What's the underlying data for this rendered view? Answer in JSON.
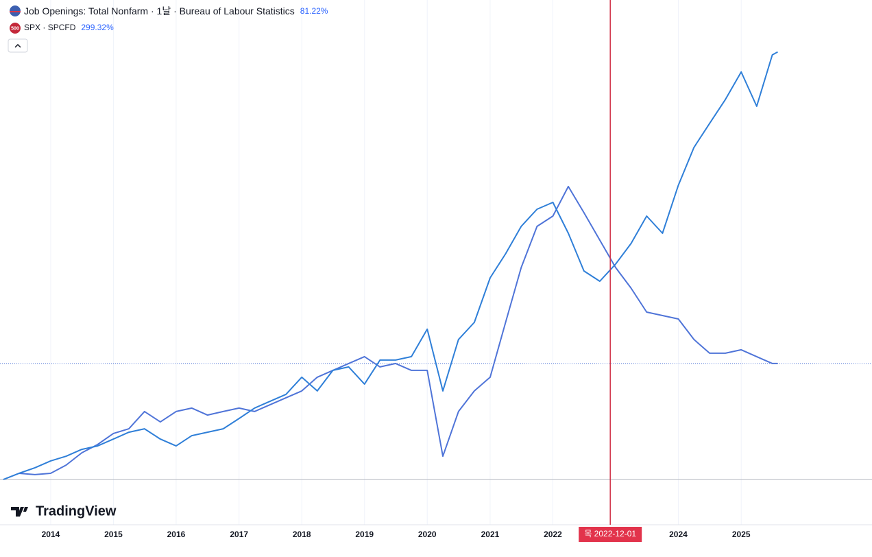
{
  "chart_data": {
    "type": "line",
    "x": [
      "2013-04-01",
      "2013-07-01",
      "2013-10-01",
      "2014-01-01",
      "2014-04-01",
      "2014-07-01",
      "2014-10-01",
      "2015-01-01",
      "2015-04-01",
      "2015-07-01",
      "2015-10-01",
      "2016-01-01",
      "2016-04-01",
      "2016-07-01",
      "2016-10-01",
      "2017-01-01",
      "2017-04-01",
      "2017-07-01",
      "2017-10-01",
      "2018-01-01",
      "2018-04-01",
      "2018-07-01",
      "2018-10-01",
      "2019-01-01",
      "2019-04-01",
      "2019-07-01",
      "2019-10-01",
      "2020-01-01",
      "2020-04-01",
      "2020-07-01",
      "2020-10-01",
      "2021-01-01",
      "2021-04-01",
      "2021-07-01",
      "2021-10-01",
      "2022-01-01",
      "2022-04-01",
      "2022-07-01",
      "2022-10-01",
      "2023-01-01",
      "2023-04-01",
      "2023-07-01",
      "2023-10-01",
      "2024-01-01",
      "2024-04-01",
      "2024-07-01",
      "2024-10-01",
      "2025-01-01",
      "2025-04-01",
      "2025-07-01",
      "2025-08-01"
    ],
    "series": [
      {
        "name": "Job Openings: Total Nonfarm",
        "interval": "1날",
        "source": "Bureau of Labour Statistics",
        "color": "#4f74d8",
        "values": [
          0,
          4.3,
          3.4,
          4.3,
          10.1,
          18.7,
          24.5,
          32.2,
          35.5,
          47.6,
          40.3,
          47.6,
          50.0,
          45.1,
          47.6,
          50.0,
          47.6,
          52.4,
          57.2,
          62.0,
          71.6,
          76.4,
          81.2,
          86.0,
          78.8,
          81.2,
          76.4,
          76.4,
          16.3,
          47.6,
          62.0,
          71.6,
          110,
          148.4,
          177.2,
          184.4,
          205.1,
          186.8,
          167.6,
          148.4,
          134,
          117.2,
          114.8,
          112.4,
          98.0,
          88.4,
          88.4,
          90.8,
          86.0,
          81.2,
          81.22
        ],
        "value_labels": [
          null,
          null,
          null,
          null,
          null,
          null,
          null,
          null,
          null,
          null,
          null,
          null,
          null,
          null,
          null,
          null,
          null,
          null,
          null,
          null,
          null,
          null,
          null,
          null,
          null,
          null,
          null,
          null,
          null,
          null,
          null,
          null,
          null,
          null,
          null,
          null,
          null,
          null,
          null,
          null,
          null,
          null,
          null,
          null,
          null,
          null,
          null,
          null,
          null,
          null,
          "81.22%"
        ]
      },
      {
        "name": "SPX",
        "exchange": "SPCFD",
        "icon_label": "500",
        "color": "#2f7fd8",
        "values": [
          0,
          4.3,
          8.2,
          13.0,
          16.3,
          21.1,
          23.5,
          28.3,
          33.1,
          35.5,
          28.3,
          23.5,
          30.7,
          33.1,
          35.5,
          42.7,
          50.0,
          54.8,
          59.6,
          71.6,
          62.0,
          76.4,
          78.8,
          66.8,
          83.6,
          83.6,
          86.0,
          105.2,
          62.0,
          98.0,
          110,
          141.2,
          158,
          177.2,
          189.2,
          194,
          172.4,
          146,
          138.8,
          150.8,
          165.2,
          184.4,
          172.4,
          206,
          232.5,
          249.3,
          266.1,
          285.3,
          261.3,
          297.3,
          299.32
        ],
        "value_labels": [
          null,
          null,
          null,
          null,
          null,
          null,
          null,
          null,
          null,
          null,
          null,
          null,
          null,
          null,
          null,
          null,
          null,
          null,
          null,
          null,
          null,
          null,
          null,
          null,
          null,
          null,
          null,
          null,
          null,
          null,
          null,
          null,
          null,
          null,
          null,
          null,
          null,
          null,
          null,
          null,
          null,
          null,
          null,
          null,
          null,
          null,
          null,
          null,
          null,
          null,
          "299.32%"
        ]
      }
    ],
    "xlim": [
      "2013-04-01",
      "2027-02-01"
    ],
    "xticks": [
      {
        "value": "2014-01-01",
        "label": "2014"
      },
      {
        "value": "2015-01-01",
        "label": "2015"
      },
      {
        "value": "2016-01-01",
        "label": "2016"
      },
      {
        "value": "2017-01-01",
        "label": "2017"
      },
      {
        "value": "2018-01-01",
        "label": "2018"
      },
      {
        "value": "2019-01-01",
        "label": "2019"
      },
      {
        "value": "2020-01-01",
        "label": "2020"
      },
      {
        "value": "2021-01-01",
        "label": "2021"
      },
      {
        "value": "2022-01-01",
        "label": "2022"
      },
      {
        "value": "2024-01-01",
        "label": "2024"
      },
      {
        "value": "2025-01-01",
        "label": "2025"
      }
    ],
    "ylim": [
      -31.7,
      335.7
    ],
    "crosshair": {
      "x": "2022-12-01",
      "label": "목 2022-12-01"
    },
    "logo": "TradingView"
  }
}
